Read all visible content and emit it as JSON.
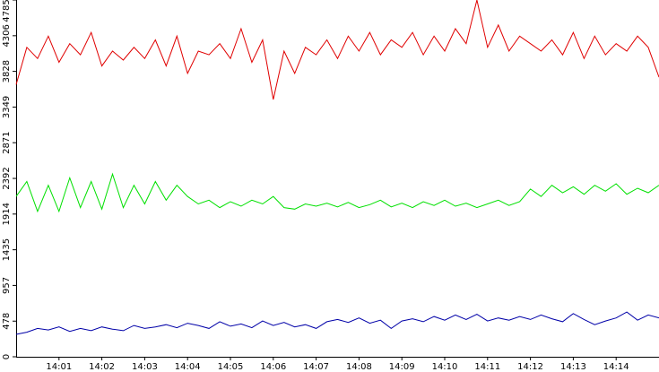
{
  "chart_data": {
    "type": "line",
    "categories": [
      null,
      null,
      null,
      null,
      "14:01",
      null,
      null,
      null,
      "14:02",
      null,
      null,
      null,
      "14:03",
      null,
      null,
      null,
      "14:04",
      null,
      null,
      null,
      "14:05",
      null,
      null,
      null,
      "14:06",
      null,
      null,
      null,
      "14:07",
      null,
      null,
      null,
      "14:08",
      null,
      null,
      null,
      "14:09",
      null,
      null,
      null,
      "14:10",
      null,
      null,
      null,
      "14:11",
      null,
      null,
      null,
      "14:12",
      null,
      null,
      null,
      "14:13",
      null,
      null,
      null,
      "14:14",
      null,
      null,
      null,
      null
    ],
    "ylim": [
      0,
      4785
    ],
    "yticks": [
      0,
      478,
      957,
      1435,
      1914,
      2392,
      2871,
      3349,
      3828,
      4306,
      4785
    ],
    "series": [
      {
        "color": "#e00000",
        "values": [
          3650,
          4150,
          4000,
          4300,
          3950,
          4200,
          4050,
          4350,
          3900,
          4100,
          3980,
          4150,
          4000,
          4250,
          3900,
          4300,
          3800,
          4100,
          4050,
          4200,
          4000,
          4400,
          3950,
          4250,
          3450,
          4100,
          3800,
          4150,
          4050,
          4250,
          4000,
          4300,
          4100,
          4350,
          4050,
          4250,
          4150,
          4350,
          4050,
          4300,
          4100,
          4400,
          4200,
          4785,
          4150,
          4450,
          4100,
          4300,
          4200,
          4100,
          4250,
          4050,
          4350,
          4000,
          4300,
          4050,
          4200,
          4100,
          4300,
          4150,
          3750
        ]
      },
      {
        "color": "#00e000",
        "values": [
          2150,
          2350,
          1950,
          2300,
          1950,
          2400,
          2000,
          2350,
          1980,
          2450,
          2000,
          2300,
          2050,
          2350,
          2100,
          2300,
          2150,
          2050,
          2100,
          2000,
          2080,
          2020,
          2100,
          2050,
          2150,
          2000,
          1980,
          2050,
          2020,
          2060,
          2010,
          2070,
          2000,
          2040,
          2100,
          2010,
          2060,
          2000,
          2080,
          2030,
          2100,
          2020,
          2060,
          2000,
          2050,
          2100,
          2030,
          2080,
          2250,
          2150,
          2300,
          2200,
          2280,
          2180,
          2300,
          2220,
          2320,
          2180,
          2260,
          2200,
          2300
        ]
      },
      {
        "color": "#0000a8",
        "values": [
          300,
          330,
          380,
          360,
          400,
          340,
          380,
          350,
          400,
          370,
          350,
          420,
          380,
          400,
          430,
          390,
          450,
          420,
          380,
          470,
          410,
          440,
          390,
          480,
          420,
          460,
          400,
          430,
          380,
          470,
          500,
          460,
          520,
          450,
          490,
          380,
          480,
          510,
          470,
          540,
          490,
          560,
          500,
          570,
          480,
          520,
          490,
          540,
          500,
          560,
          510,
          470,
          580,
          500,
          430,
          480,
          520,
          600,
          490,
          560,
          520
        ]
      }
    ]
  }
}
